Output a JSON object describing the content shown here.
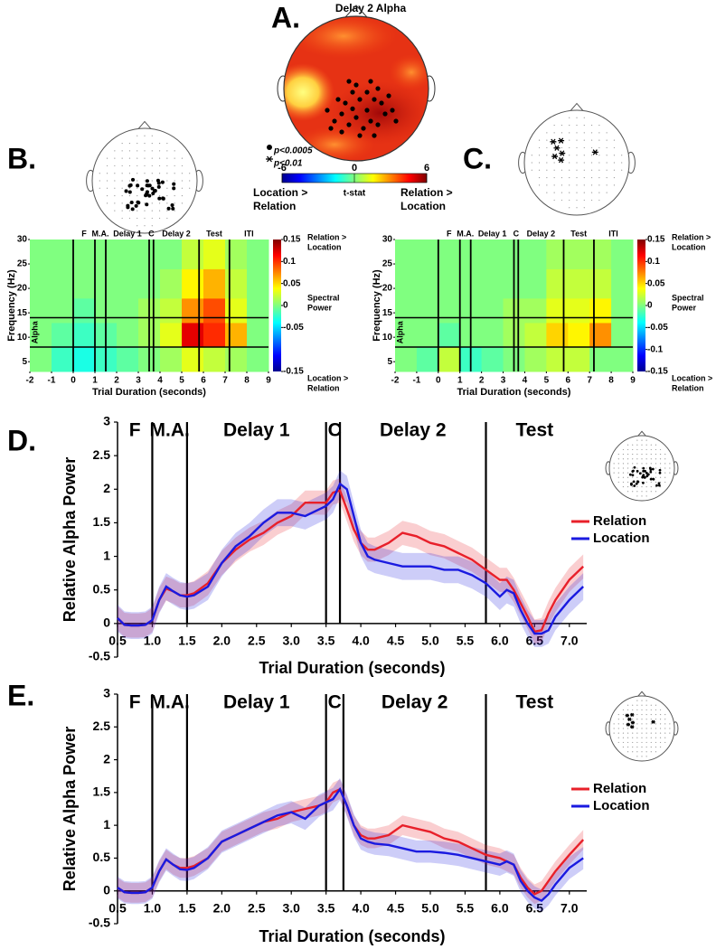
{
  "chart_data": [
    {
      "type": "topomap",
      "panel": "A.",
      "title": "Delay 2 Alpha",
      "significance": [
        "p<0.0005",
        "p<0.01"
      ],
      "colorbar": {
        "label": "t-stat",
        "lim": [
          -6,
          6
        ],
        "ticks": [
          -6,
          0,
          6
        ],
        "low_label": [
          "Location >",
          "Relation"
        ],
        "high_label": [
          "Relation >",
          "Location"
        ]
      }
    },
    {
      "type": "spectrogram",
      "panel": "B.",
      "xlabel": "Trial Duration (seconds)",
      "ylabel": "Frequency (Hz)",
      "xlim": [
        -2,
        9
      ],
      "xticks": [
        -2,
        -1,
        0,
        1,
        2,
        3,
        4,
        5,
        6,
        7,
        8,
        9
      ],
      "ylim": [
        3,
        30
      ],
      "yticks": [
        5,
        10,
        15,
        20,
        25,
        30
      ],
      "x_bins": [
        -2,
        -1,
        0,
        1,
        2,
        3,
        4,
        5,
        6,
        7,
        8,
        9
      ],
      "y_bins": [
        3,
        8,
        13,
        18,
        24,
        30
      ],
      "colormap": "jet",
      "values": [
        [
          0,
          -0.02,
          -0.03,
          -0.02,
          -0.01,
          0,
          0.01,
          0.03,
          0.02,
          0.01,
          0
        ],
        [
          0,
          -0.01,
          -0.02,
          -0.01,
          0,
          0.01,
          0.03,
          0.12,
          0.1,
          0.06,
          0
        ],
        [
          0,
          0,
          -0.01,
          0,
          0,
          0.01,
          0.02,
          0.07,
          0.09,
          0.03,
          0
        ],
        [
          0,
          0,
          0,
          0,
          0,
          0,
          0.01,
          0.04,
          0.06,
          0.02,
          0
        ],
        [
          0,
          0,
          0,
          0,
          0,
          0,
          0,
          0.02,
          0.03,
          0.01,
          0
        ]
      ],
      "epochs": [
        {
          "label": "F",
          "start": 0,
          "end": 1
        },
        {
          "label": "M.A.",
          "start": 1,
          "end": 1.5
        },
        {
          "label": "Delay 1",
          "start": 1.5,
          "end": 3.5
        },
        {
          "label": "C",
          "start": 3.5,
          "end": 3.7
        },
        {
          "label": "Delay 2",
          "start": 3.7,
          "end": 5.8
        },
        {
          "label": "Test",
          "start": 5.8,
          "end": 7.2
        },
        {
          "label": "ITI",
          "start": 7.2,
          "end": 9
        }
      ],
      "band": {
        "label": "Alpha",
        "range": [
          8,
          14
        ]
      },
      "colorbar": {
        "lim": [
          -0.15,
          0.15
        ],
        "ticks": [
          0.15,
          0.1,
          0.05,
          0,
          -0.05,
          -0.15
        ],
        "top_label": [
          "Relation >",
          "Location"
        ],
        "mid_label": [
          "Spectral",
          "Power"
        ],
        "bottom_label": [
          "Location >",
          "Relation"
        ]
      }
    },
    {
      "type": "spectrogram",
      "panel": "C.",
      "xlabel": "Trial Duration (seconds)",
      "ylabel": "Frequency (Hz)",
      "xlim": [
        -2,
        9
      ],
      "xticks": [
        -2,
        -1,
        0,
        1,
        2,
        3,
        4,
        5,
        6,
        7,
        8,
        9
      ],
      "ylim": [
        3,
        30
      ],
      "yticks": [
        5,
        10,
        15,
        20,
        25,
        30
      ],
      "x_bins": [
        -2,
        -1,
        0,
        1,
        2,
        3,
        4,
        5,
        6,
        7,
        8,
        9
      ],
      "y_bins": [
        3,
        8,
        13,
        18,
        24,
        30
      ],
      "colormap": "jet",
      "values": [
        [
          0,
          -0.01,
          0.02,
          -0.02,
          -0.01,
          0,
          0.01,
          0.02,
          0.02,
          0,
          0
        ],
        [
          0,
          0,
          -0.01,
          0,
          0,
          0.01,
          0.02,
          0.05,
          0.04,
          0.07,
          0
        ],
        [
          0,
          0,
          0,
          0,
          0,
          0.01,
          0.01,
          0.03,
          0.03,
          0.04,
          0
        ],
        [
          0,
          0,
          0,
          0,
          0,
          0,
          0,
          0.02,
          0.02,
          0.02,
          0
        ],
        [
          0,
          0,
          0,
          0,
          0,
          0,
          0,
          0.01,
          0.01,
          0.01,
          0
        ]
      ],
      "epochs": [
        {
          "label": "F",
          "start": 0,
          "end": 1
        },
        {
          "label": "M.A.",
          "start": 1,
          "end": 1.5
        },
        {
          "label": "Delay 1",
          "start": 1.5,
          "end": 3.5
        },
        {
          "label": "C",
          "start": 3.5,
          "end": 3.7
        },
        {
          "label": "Delay 2",
          "start": 3.7,
          "end": 5.8
        },
        {
          "label": "Test",
          "start": 5.8,
          "end": 7.2
        },
        {
          "label": "ITI",
          "start": 7.2,
          "end": 9
        }
      ],
      "band": {
        "label": "Alpha",
        "range": [
          8,
          14
        ]
      },
      "colorbar": {
        "lim": [
          -0.15,
          0.15
        ],
        "ticks": [
          0.15,
          0.1,
          0.05,
          0,
          -0.05,
          -0.1,
          -0.15
        ],
        "top_label": [
          "Relation >",
          "Location"
        ],
        "mid_label": [
          "Spectral",
          "Power"
        ],
        "bottom_label": [
          "Location >",
          "Relation"
        ]
      }
    },
    {
      "type": "line",
      "panel": "D.",
      "xlabel": "Trial Duration (seconds)",
      "ylabel": "Relative Alpha Power",
      "xlim": [
        0.5,
        7.25
      ],
      "ylim": [
        -0.5,
        3
      ],
      "xticks": [
        0.5,
        {
          "value": 1,
          "label": "1.0"
        },
        1.5,
        {
          "value": 2,
          "label": "2.0"
        },
        2.5,
        {
          "value": 3,
          "label": "3.0"
        },
        3.5,
        {
          "value": 4,
          "label": "4.0"
        },
        4.5,
        {
          "value": 5,
          "label": "5.0"
        },
        5.5,
        {
          "value": 6,
          "label": "6.0"
        },
        6.5,
        {
          "value": 7,
          "label": "7.0"
        }
      ],
      "yticks": [
        -0.5,
        0,
        0.5,
        1,
        1.5,
        2,
        2.5,
        3
      ],
      "epochs": [
        {
          "label": "F",
          "start": 0.5,
          "end": 1
        },
        {
          "label": "M.A.",
          "start": 1,
          "end": 1.5
        },
        {
          "label": "Delay 1",
          "start": 1.5,
          "end": 3.5
        },
        {
          "label": "C",
          "start": 3.5,
          "end": 3.7
        },
        {
          "label": "Delay 2",
          "start": 3.7,
          "end": 5.8
        },
        {
          "label": "Test",
          "start": 5.8,
          "end": 7.2
        }
      ],
      "x": [
        0.5,
        0.6,
        0.7,
        0.8,
        0.9,
        1.0,
        1.1,
        1.2,
        1.3,
        1.4,
        1.5,
        1.6,
        1.8,
        2.0,
        2.2,
        2.4,
        2.6,
        2.8,
        3.0,
        3.2,
        3.4,
        3.5,
        3.6,
        3.7,
        3.8,
        3.9,
        4.0,
        4.1,
        4.2,
        4.4,
        4.6,
        4.8,
        5.0,
        5.2,
        5.4,
        5.6,
        5.8,
        6.0,
        6.1,
        6.2,
        6.3,
        6.4,
        6.5,
        6.6,
        6.7,
        6.8,
        7.0,
        7.2
      ],
      "series": [
        {
          "name": "Relation",
          "color": "#e8202a",
          "error": 0.18,
          "values": [
            0.08,
            -0.02,
            -0.03,
            -0.03,
            -0.02,
            0.05,
            0.35,
            0.52,
            0.48,
            0.42,
            0.42,
            0.45,
            0.6,
            0.9,
            1.1,
            1.25,
            1.35,
            1.5,
            1.6,
            1.8,
            1.8,
            1.8,
            1.95,
            1.98,
            1.7,
            1.4,
            1.2,
            1.1,
            1.1,
            1.2,
            1.35,
            1.3,
            1.2,
            1.15,
            1.05,
            0.95,
            0.8,
            0.65,
            0.65,
            0.5,
            0.3,
            0.1,
            -0.12,
            -0.1,
            0.15,
            0.35,
            0.65,
            0.85
          ]
        },
        {
          "name": "Location",
          "color": "#1a1ae0",
          "error": 0.2,
          "values": [
            0.08,
            -0.02,
            -0.03,
            -0.03,
            -0.02,
            0.05,
            0.35,
            0.55,
            0.48,
            0.42,
            0.4,
            0.42,
            0.55,
            0.9,
            1.15,
            1.3,
            1.5,
            1.65,
            1.65,
            1.6,
            1.7,
            1.75,
            1.85,
            2.08,
            2.0,
            1.6,
            1.2,
            1.0,
            0.95,
            0.9,
            0.85,
            0.85,
            0.85,
            0.8,
            0.8,
            0.72,
            0.6,
            0.4,
            0.5,
            0.45,
            0.2,
            0.0,
            -0.15,
            -0.15,
            -0.1,
            0.1,
            0.35,
            0.55
          ]
        }
      ]
    },
    {
      "type": "line",
      "panel": "E.",
      "xlabel": "Trial Duration (seconds)",
      "ylabel": "Relative Alpha Power",
      "xlim": [
        0.5,
        7.25
      ],
      "ylim": [
        -0.5,
        3
      ],
      "xticks": [
        0.5,
        {
          "value": 1,
          "label": "1.0"
        },
        1.5,
        {
          "value": 2,
          "label": "2.0"
        },
        2.5,
        {
          "value": 3,
          "label": "3.0"
        },
        3.5,
        {
          "value": 4,
          "label": "4.0"
        },
        4.5,
        {
          "value": 5,
          "label": "5.0"
        },
        5.5,
        {
          "value": 6,
          "label": "6.0"
        },
        6.5,
        {
          "value": 7,
          "label": "7.0"
        }
      ],
      "yticks": [
        -0.5,
        0,
        0.5,
        1,
        1.5,
        2,
        2.5,
        3
      ],
      "epochs": [
        {
          "label": "F",
          "start": 0.5,
          "end": 1
        },
        {
          "label": "M.A.",
          "start": 1,
          "end": 1.5
        },
        {
          "label": "Delay 1",
          "start": 1.5,
          "end": 3.5
        },
        {
          "label": "C",
          "start": 3.5,
          "end": 3.75
        },
        {
          "label": "Delay 2",
          "start": 3.75,
          "end": 5.8
        },
        {
          "label": "Test",
          "start": 5.8,
          "end": 7.2
        }
      ],
      "x": [
        0.5,
        0.6,
        0.7,
        0.8,
        0.9,
        1.0,
        1.1,
        1.2,
        1.3,
        1.4,
        1.5,
        1.6,
        1.8,
        2.0,
        2.2,
        2.4,
        2.6,
        2.8,
        3.0,
        3.2,
        3.4,
        3.5,
        3.6,
        3.7,
        3.8,
        3.9,
        4.0,
        4.1,
        4.2,
        4.4,
        4.6,
        4.8,
        5.0,
        5.2,
        5.4,
        5.6,
        5.8,
        6.0,
        6.1,
        6.2,
        6.3,
        6.4,
        6.5,
        6.6,
        6.7,
        6.8,
        7.0,
        7.2
      ],
      "series": [
        {
          "name": "Relation",
          "color": "#e8202a",
          "error": 0.15,
          "values": [
            0.05,
            -0.02,
            -0.03,
            -0.03,
            -0.02,
            0.05,
            0.3,
            0.48,
            0.4,
            0.35,
            0.35,
            0.38,
            0.5,
            0.75,
            0.85,
            0.95,
            1.05,
            1.1,
            1.2,
            1.25,
            1.3,
            1.35,
            1.5,
            1.55,
            1.3,
            1.0,
            0.85,
            0.8,
            0.8,
            0.85,
            1.0,
            0.95,
            0.9,
            0.8,
            0.75,
            0.65,
            0.55,
            0.5,
            0.45,
            0.4,
            0.2,
            0.05,
            -0.05,
            0.0,
            0.15,
            0.3,
            0.55,
            0.78
          ]
        },
        {
          "name": "Location",
          "color": "#1a1ae0",
          "error": 0.17,
          "values": [
            0.05,
            -0.02,
            -0.03,
            -0.03,
            -0.02,
            0.05,
            0.3,
            0.48,
            0.4,
            0.33,
            0.32,
            0.35,
            0.5,
            0.75,
            0.85,
            0.95,
            1.05,
            1.15,
            1.2,
            1.1,
            1.3,
            1.35,
            1.4,
            1.55,
            1.3,
            1.0,
            0.8,
            0.75,
            0.72,
            0.7,
            0.65,
            0.6,
            0.6,
            0.58,
            0.55,
            0.5,
            0.45,
            0.4,
            0.45,
            0.4,
            0.15,
            0.0,
            -0.1,
            -0.15,
            -0.05,
            0.1,
            0.35,
            0.5
          ]
        }
      ]
    }
  ]
}
